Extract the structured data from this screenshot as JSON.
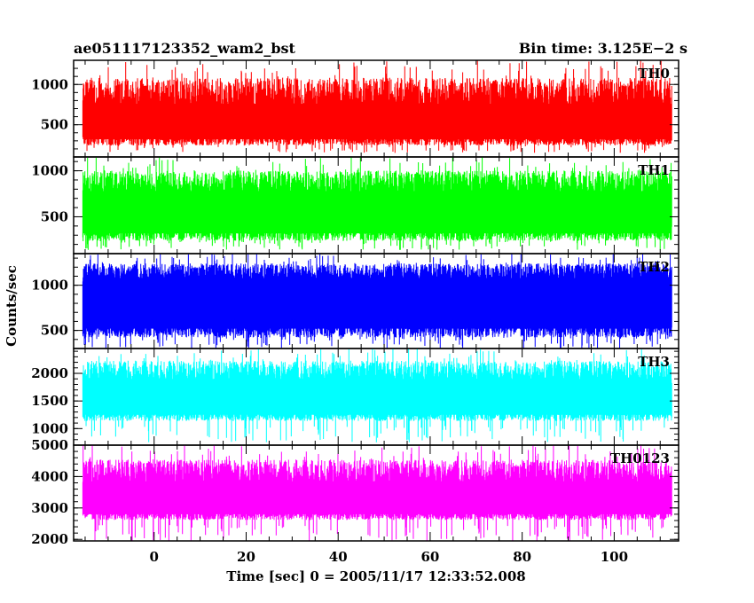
{
  "chart_data": {
    "type": "line",
    "title_left": "ae051117123352_wam2_bst",
    "title_right": "Bin time: 3.125E−2 s",
    "xlabel": "Time [sec] 0 = 2005/11/17 12:33:52.008",
    "ylabel": "Counts/sec",
    "xlim": [
      -17.5,
      114
    ],
    "x_ticks": [
      0,
      20,
      40,
      60,
      80,
      100
    ],
    "x_tick_labels": [
      "0",
      "20",
      "40",
      "60",
      "80",
      "100"
    ],
    "data_x_range": [
      -15.5,
      112.5
    ],
    "panels": [
      {
        "name": "TH0",
        "color": "#ff0000",
        "ylim": [
          100,
          1300
        ],
        "y_ticks": [
          500,
          1000
        ],
        "y_tick_labels": [
          "500",
          "1000"
        ],
        "band_low": 320,
        "band_high": 760,
        "spike_max": 1300,
        "spike_min": 150
      },
      {
        "name": "TH1",
        "color": "#00ff00",
        "ylim": [
          100,
          1150
        ],
        "y_ticks": [
          500,
          1000
        ],
        "y_tick_labels": [
          "500",
          "1000"
        ],
        "band_low": 320,
        "band_high": 780,
        "spike_max": 1150,
        "spike_min": 140
      },
      {
        "name": "TH2",
        "color": "#0000ff",
        "ylim": [
          300,
          1350
        ],
        "y_ticks": [
          500,
          1000
        ],
        "y_tick_labels": [
          "500",
          "1000"
        ],
        "band_low": 520,
        "band_high": 1080,
        "spike_max": 1350,
        "spike_min": 300
      },
      {
        "name": "TH3",
        "color": "#00ffff",
        "ylim": [
          700,
          2450
        ],
        "y_ticks": [
          1000,
          1500,
          2000
        ],
        "y_tick_labels": [
          "1000",
          "1500",
          "2000"
        ],
        "band_low": 1250,
        "band_high": 1900,
        "spike_max": 2450,
        "spike_min": 750
      },
      {
        "name": "TH0123",
        "color": "#ff00ff",
        "ylim": [
          1950,
          5000
        ],
        "y_ticks": [
          2000,
          3000,
          4000,
          5000
        ],
        "y_tick_labels": [
          "2000",
          "3000",
          "4000",
          "5000"
        ],
        "band_low": 2800,
        "band_high": 3850,
        "spike_max": 5000,
        "spike_min": 1950
      }
    ]
  }
}
